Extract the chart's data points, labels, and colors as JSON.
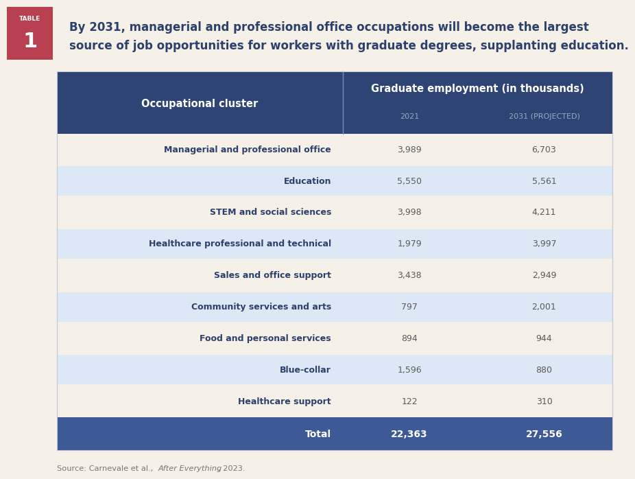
{
  "title_line1": "By 2031, managerial and professional office occupations will become the largest",
  "title_line2": "source of job opportunities for workers with graduate degrees, supplanting education.",
  "table_label": "TABLE",
  "table_number": "1",
  "col_header1": "Occupational cluster",
  "col_header2": "Graduate employment (in thousands)",
  "subheader_2021": "2021",
  "subheader_2031": "2031 (PROJECTED)",
  "rows": [
    [
      "Managerial and professional office",
      "3,989",
      "6,703"
    ],
    [
      "Education",
      "5,550",
      "5,561"
    ],
    [
      "STEM and social sciences",
      "3,998",
      "4,211"
    ],
    [
      "Healthcare professional and technical",
      "1,979",
      "3,997"
    ],
    [
      "Sales and office support",
      "3,438",
      "2,949"
    ],
    [
      "Community services and arts",
      "797",
      "2,001"
    ],
    [
      "Food and personal services",
      "894",
      "944"
    ],
    [
      "Blue-collar",
      "1,596",
      "880"
    ],
    [
      "Healthcare support",
      "122",
      "310"
    ]
  ],
  "total_row": [
    "Total",
    "22,363",
    "27,556"
  ],
  "bg_color": "#f5f0e8",
  "header_bg": "#2d4474",
  "header_text": "#ffffff",
  "row_odd_bg": "#f5f0e8",
  "row_even_bg": "#dce8f5",
  "total_bg": "#3d5a96",
  "total_text": "#ffffff",
  "label_box_color": "#b84050",
  "title_color": "#2d3f6b",
  "data_text_color": "#5a5a5a",
  "row_label_color": "#2d3f6b",
  "source_color": "#777777",
  "subheader_color": "#9aaac0",
  "divider_color": "#7a90b0",
  "border_color": "#c0c8d8"
}
